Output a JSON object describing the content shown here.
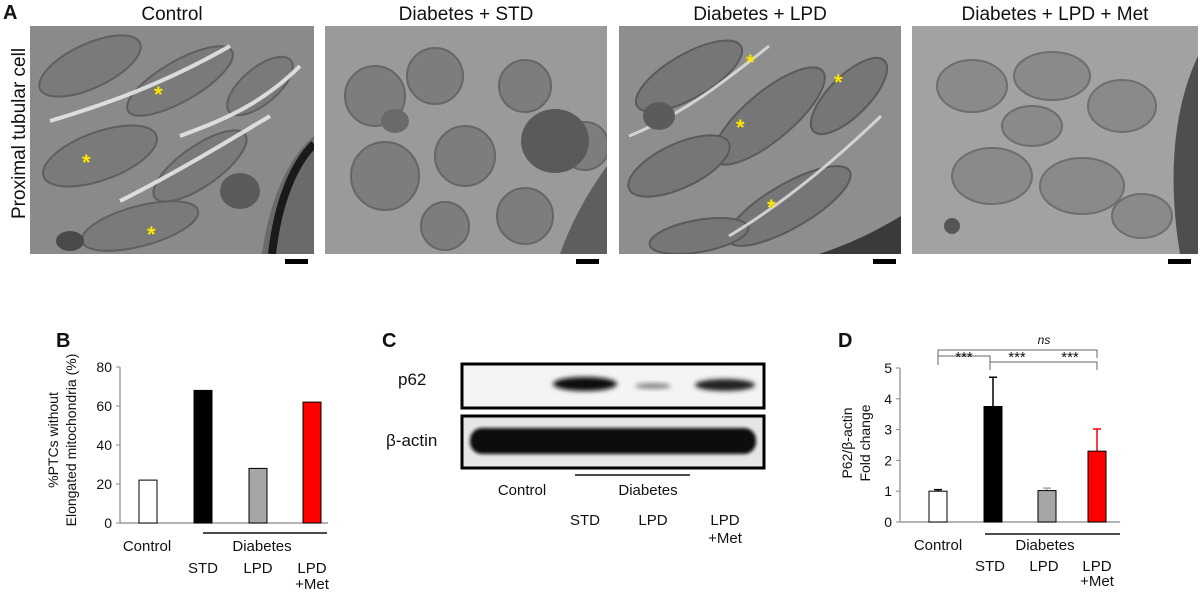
{
  "panel_a": {
    "letter": "A",
    "row_label": "Proximal tubular cell",
    "images": [
      {
        "title": "Control",
        "asterisks": [
          "*",
          "*",
          "*"
        ]
      },
      {
        "title": "Diabetes + STD",
        "asterisks": []
      },
      {
        "title": "Diabetes + LPD",
        "asterisks": [
          "*",
          "*",
          "*",
          "*"
        ]
      },
      {
        "title": "Diabetes + LPD + Met",
        "asterisks": []
      }
    ]
  },
  "panel_b": {
    "letter": "B",
    "ylabel_line1": "%PTCs without",
    "ylabel_line2": "Elongated mitochondria (%)",
    "yticks": [
      "0",
      "20",
      "40",
      "60",
      "80"
    ],
    "control_label": "Control",
    "group_label": "Diabetes",
    "sub_labels": [
      "STD",
      "LPD",
      "LPD",
      "+Met"
    ]
  },
  "panel_c": {
    "letter": "C",
    "band_labels": [
      "p62",
      "β-actin"
    ],
    "control_label": "Control",
    "group_label": "Diabetes",
    "sub_labels": [
      "STD",
      "LPD",
      "LPD",
      "+Met"
    ]
  },
  "panel_d": {
    "letter": "D",
    "ylabel_line1": "P62/β-actin",
    "ylabel_line2": "Fold change",
    "yticks": [
      "0",
      "1",
      "2",
      "3",
      "4",
      "5"
    ],
    "control_label": "Control",
    "group_label": "Diabetes",
    "sub_labels": [
      "STD",
      "LPD",
      "LPD",
      "+Met"
    ],
    "sig": [
      "***",
      "***",
      "***",
      "ns"
    ]
  },
  "chart_data": [
    {
      "type": "bar",
      "categories": [
        "Control",
        "STD",
        "LPD",
        "LPD +Met"
      ],
      "values": [
        22,
        68,
        28,
        62
      ],
      "colors": [
        "#ffffff",
        "#000000",
        "#a6a6a6",
        "#ff0000"
      ],
      "title": "",
      "xlabel": "",
      "ylabel": "%PTCs without Elongated mitochondria (%)",
      "ylim": [
        0,
        80
      ]
    },
    {
      "type": "bar",
      "categories": [
        "Control",
        "STD",
        "LPD",
        "LPD +Met"
      ],
      "values": [
        1.0,
        3.75,
        1.02,
        2.3
      ],
      "errors": [
        0.05,
        0.95,
        0.08,
        0.72
      ],
      "colors": [
        "#ffffff",
        "#000000",
        "#a6a6a6",
        "#ff0000"
      ],
      "title": "",
      "xlabel": "",
      "ylabel": "P62/β-actin Fold change",
      "ylim": [
        0,
        5
      ]
    }
  ]
}
